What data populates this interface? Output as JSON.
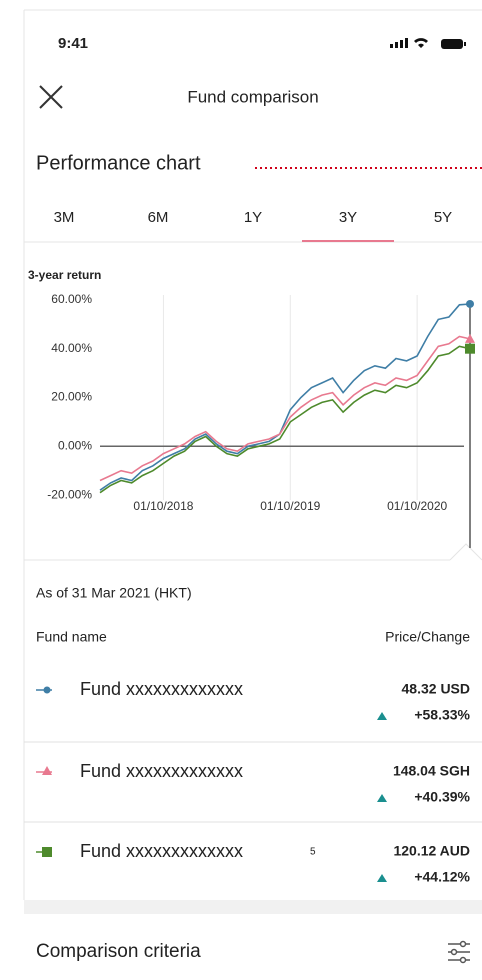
{
  "status_bar": {
    "time": "9:41"
  },
  "header": {
    "title": "Fund comparison"
  },
  "section_title": "Performance chart",
  "tabs": {
    "items": [
      "3M",
      "6M",
      "1Y",
      "3Y",
      "5Y"
    ],
    "selected": 3
  },
  "chart_data": {
    "type": "line",
    "title": "3-year return",
    "x": [
      "01/04/2018",
      "01/05/2018",
      "01/06/2018",
      "01/07/2018",
      "01/08/2018",
      "01/09/2018",
      "01/10/2018",
      "01/11/2018",
      "01/12/2018",
      "01/01/2019",
      "01/02/2019",
      "01/03/2019",
      "01/04/2019",
      "01/05/2019",
      "01/06/2019",
      "01/07/2019",
      "01/08/2019",
      "01/09/2019",
      "01/10/2019",
      "01/11/2019",
      "01/12/2019",
      "01/01/2020",
      "01/02/2020",
      "01/03/2020",
      "01/04/2020",
      "01/05/2020",
      "01/06/2020",
      "01/07/2020",
      "01/08/2020",
      "01/09/2020",
      "01/10/2020",
      "01/11/2020",
      "01/12/2020",
      "01/01/2021",
      "01/02/2021",
      "01/03/2021"
    ],
    "xlim": [
      "01/04/2018",
      "01/03/2021"
    ],
    "xticks": [
      "01/10/2018",
      "01/10/2019",
      "01/10/2020"
    ],
    "ylim": [
      -22,
      62
    ],
    "yticks": [
      {
        "value": 60,
        "label": "60.00%"
      },
      {
        "value": 40,
        "label": "40.00%"
      },
      {
        "value": 20,
        "label": "20.00%"
      },
      {
        "value": 0,
        "label": "0.00%"
      },
      {
        "value": -20,
        "label": "-20.00%"
      }
    ],
    "grid": "x",
    "zero_line": true,
    "series": [
      {
        "color": "#3f7ea6",
        "marker": "circle",
        "values": [
          -18,
          -15,
          -13,
          -14,
          -10,
          -8,
          -5,
          -3,
          -1,
          3,
          5,
          1,
          -2,
          -3,
          0,
          1,
          2,
          5,
          15,
          20,
          24,
          26,
          28,
          22,
          27,
          31,
          33,
          32,
          36,
          35,
          37,
          45,
          52,
          53,
          58,
          58.33
        ]
      },
      {
        "color": "#e8798f",
        "marker": "triangle",
        "values": [
          -14,
          -12,
          -10,
          -11,
          -8,
          -6,
          -3,
          -1,
          1,
          4,
          6,
          2,
          -1,
          -2,
          1,
          2,
          3,
          5,
          12,
          16,
          19,
          21,
          22,
          17,
          21,
          24,
          26,
          25,
          28,
          27,
          29,
          35,
          41,
          42,
          45,
          44
        ]
      },
      {
        "color": "#4e8a2c",
        "marker": "square",
        "values": [
          -19,
          -16,
          -14,
          -15,
          -12,
          -10,
          -7,
          -4,
          -2,
          2,
          4,
          0,
          -3,
          -4,
          -1,
          0,
          1,
          3,
          10,
          13,
          16,
          18,
          19,
          14,
          18,
          21,
          23,
          22,
          25,
          24,
          26,
          31,
          37,
          38,
          41,
          40
        ]
      }
    ]
  },
  "as_of": "As of 31 Mar 2021 (HKT)",
  "table": {
    "columns": [
      "Fund name",
      "Price/Change"
    ],
    "rows": [
      {
        "name": "Fund xxxxxxxxxxxxx",
        "price": "48.32 USD",
        "change": "+58.33%"
      },
      {
        "name": "Fund xxxxxxxxxxxxx",
        "price": "148.04 SGH",
        "change": "+40.39%"
      },
      {
        "name": "Fund xxxxxxxxxxxxx",
        "note": "5",
        "price": "120.12 AUD",
        "change": "+44.12%"
      }
    ]
  },
  "footer": {
    "title": "Comparison criteria"
  }
}
